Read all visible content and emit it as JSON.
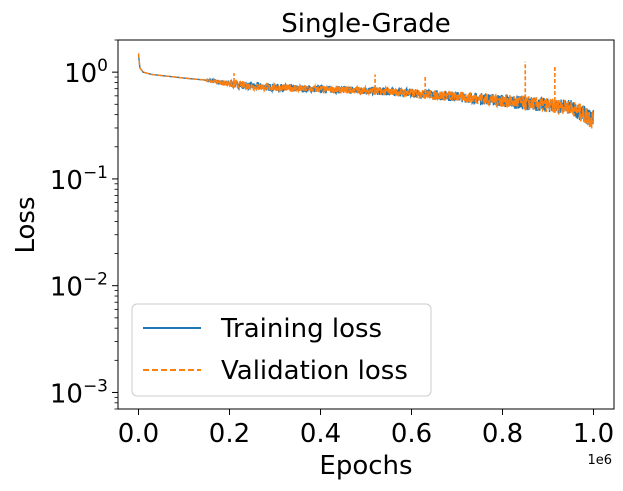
{
  "chart_data": {
    "type": "line",
    "title": "Single-Grade",
    "xlabel": "Epochs",
    "ylabel": "Loss",
    "x_offset_label": "1e6",
    "xlim": [
      -0.045,
      1.045
    ],
    "ylim": [
      0.0007,
      2.0
    ],
    "yscale": "log",
    "grid": false,
    "legend_position": "lower-left",
    "x_ticks": [
      {
        "value": 0.0,
        "label": "0.0"
      },
      {
        "value": 0.2,
        "label": "0.2"
      },
      {
        "value": 0.4,
        "label": "0.4"
      },
      {
        "value": 0.6,
        "label": "0.6"
      },
      {
        "value": 0.8,
        "label": "0.8"
      },
      {
        "value": 1.0,
        "label": "1.0"
      }
    ],
    "y_ticks": [
      {
        "value": 1,
        "base": "10",
        "exp": "0"
      },
      {
        "value": 0.1,
        "base": "10",
        "exp": "−1"
      },
      {
        "value": 0.01,
        "base": "10",
        "exp": "−2"
      },
      {
        "value": 0.001,
        "base": "10",
        "exp": "−3"
      }
    ],
    "series": [
      {
        "name": "Training loss",
        "color": "#1f77b4",
        "style": "solid",
        "x": [
          0.0,
          0.003,
          0.01,
          0.03,
          0.06,
          0.1,
          0.15,
          0.2,
          0.25,
          0.3,
          0.35,
          0.4,
          0.45,
          0.5,
          0.55,
          0.6,
          0.65,
          0.7,
          0.75,
          0.8,
          0.85,
          0.9,
          0.95,
          1.0
        ],
        "upper": [
          1.45,
          1.1,
          1.0,
          0.95,
          0.92,
          0.88,
          0.86,
          0.84,
          0.8,
          0.78,
          0.76,
          0.75,
          0.74,
          0.73,
          0.72,
          0.7,
          0.68,
          0.66,
          0.64,
          0.62,
          0.6,
          0.57,
          0.55,
          0.45
        ],
        "lower": [
          1.45,
          1.1,
          1.0,
          0.95,
          0.92,
          0.88,
          0.82,
          0.72,
          0.68,
          0.66,
          0.65,
          0.64,
          0.63,
          0.62,
          0.6,
          0.58,
          0.55,
          0.53,
          0.5,
          0.47,
          0.44,
          0.42,
          0.4,
          0.28
        ]
      },
      {
        "name": "Validation loss",
        "color": "#ff7f0e",
        "style": "dashed",
        "x": [
          0.0,
          0.003,
          0.01,
          0.03,
          0.06,
          0.1,
          0.15,
          0.2,
          0.25,
          0.3,
          0.35,
          0.4,
          0.45,
          0.5,
          0.55,
          0.6,
          0.65,
          0.7,
          0.75,
          0.8,
          0.85,
          0.9,
          0.95,
          1.0
        ],
        "upper": [
          1.5,
          1.1,
          1.0,
          0.95,
          0.92,
          0.88,
          0.86,
          0.84,
          0.8,
          0.78,
          0.76,
          0.75,
          0.74,
          0.73,
          0.72,
          0.7,
          0.68,
          0.66,
          0.64,
          0.62,
          0.6,
          0.57,
          0.55,
          0.45
        ],
        "lower": [
          1.5,
          1.1,
          1.0,
          0.95,
          0.92,
          0.88,
          0.82,
          0.72,
          0.68,
          0.66,
          0.65,
          0.64,
          0.63,
          0.62,
          0.6,
          0.58,
          0.55,
          0.53,
          0.5,
          0.47,
          0.44,
          0.42,
          0.4,
          0.28
        ],
        "spikes": [
          {
            "x": 0.21,
            "y": 0.98
          },
          {
            "x": 0.52,
            "y": 0.95
          },
          {
            "x": 0.63,
            "y": 0.9
          },
          {
            "x": 0.85,
            "y": 1.25
          },
          {
            "x": 0.915,
            "y": 1.15
          }
        ]
      }
    ]
  }
}
